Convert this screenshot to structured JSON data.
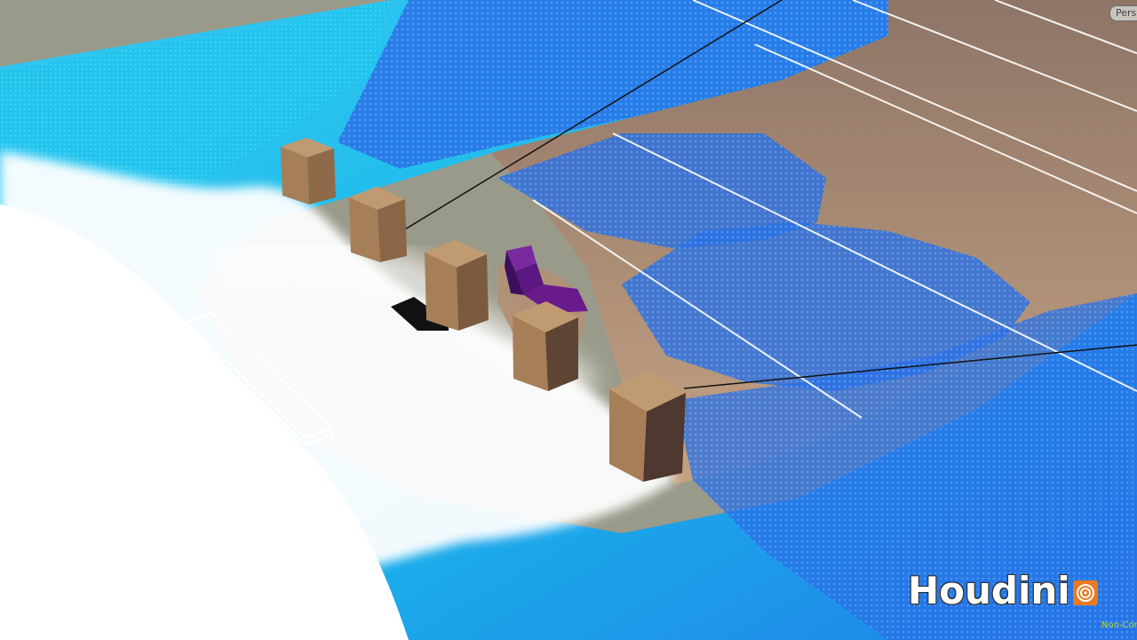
{
  "viewport": {
    "camera_label": "Persp",
    "logo_text": "Houdini",
    "logo_icon": "houdini-swirl-icon",
    "license_label": "Non-Commercial"
  },
  "colors": {
    "background": "#9a9888",
    "water_cyan": "#1ec8ee",
    "water_blue": "#2a6fe6",
    "foam_white": "#ffffff",
    "seabed": "#b09276",
    "pillar": "#a67f58",
    "pillar_shadow": "#5a3f2e",
    "debris_purple": "#6a1a8a",
    "logo_orange": "#e87a20",
    "license_green": "#b6d92a"
  },
  "scene": {
    "pillar_count": 5,
    "objects": [
      "pillar",
      "pillar",
      "pillar",
      "pillar",
      "pillar",
      "purple-debris",
      "black-debris",
      "wireframe-box"
    ]
  }
}
